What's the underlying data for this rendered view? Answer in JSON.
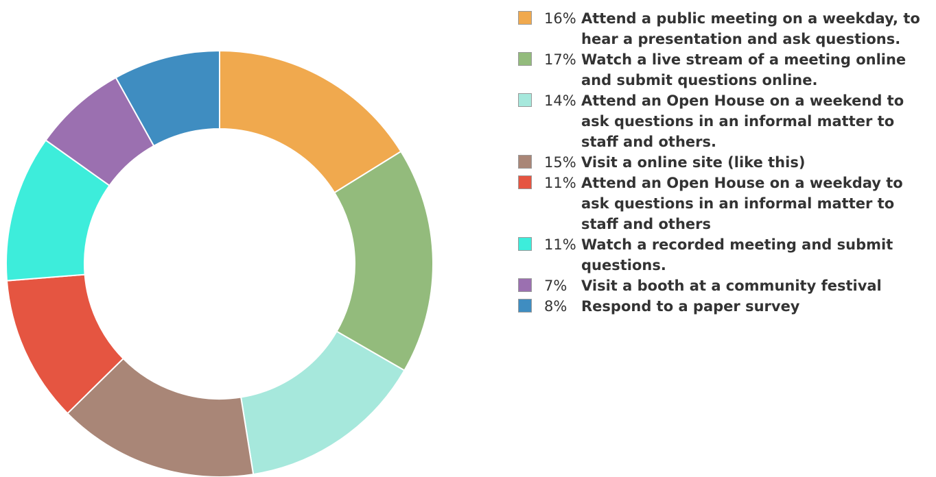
{
  "chart_data": {
    "type": "donut",
    "categories": [
      "Attend a public meeting on a weekday, to hear a presentation and ask questions.",
      "Watch a live stream of a meeting online and submit questions online.",
      "Attend an Open House on a weekend to ask questions in an informal matter to staff and others.",
      "Visit a online site (like this)",
      "Attend an Open House on a weekday to ask questions in an informal matter to staff and others",
      "Watch a recorded meeting and submit questions.",
      "Visit a booth at a community festival",
      "Respond to a paper survey"
    ],
    "values": [
      16,
      17,
      14,
      15,
      11,
      11,
      7,
      8
    ],
    "value_labels": [
      "16%",
      "17%",
      "14%",
      "15%",
      "11%",
      "11%",
      "7%",
      "8%"
    ],
    "colors": [
      "#f0a94e",
      "#93bb7c",
      "#a6e8dc",
      "#a98677",
      "#e55541",
      "#3deddb",
      "#9b70b0",
      "#3f8dc1"
    ],
    "legend": "right"
  }
}
